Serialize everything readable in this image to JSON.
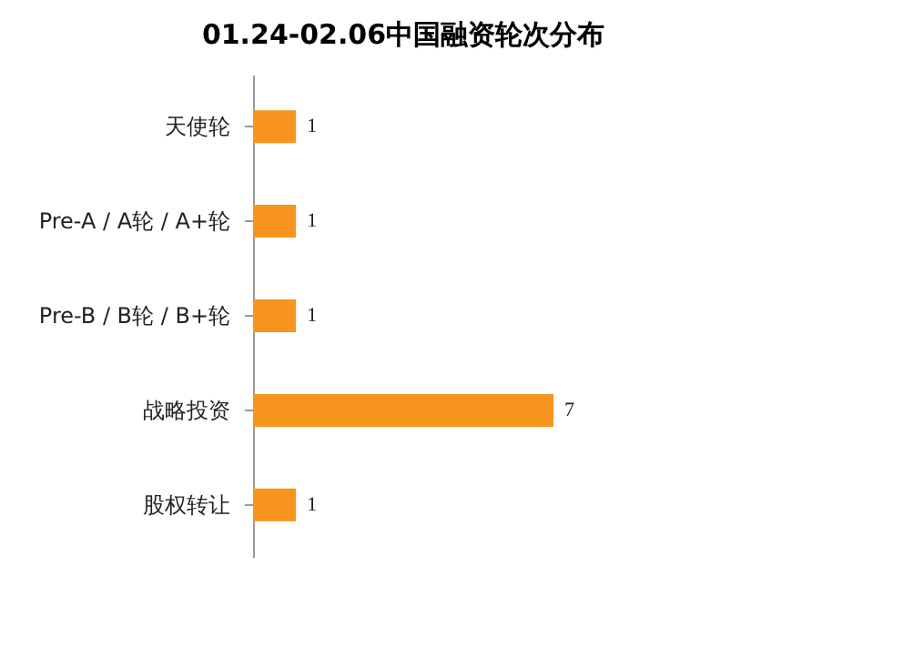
{
  "chart_data": {
    "type": "bar",
    "orientation": "horizontal",
    "title": "01.24-02.06中国融资轮次分布",
    "categories": [
      "天使轮",
      "Pre-A / A轮 / A+轮",
      "Pre-B / B轮 / B+轮",
      "战略投资",
      "股权转让"
    ],
    "values": [
      1,
      1,
      1,
      7,
      1
    ],
    "color": "#f7941d",
    "data_labels": true
  }
}
